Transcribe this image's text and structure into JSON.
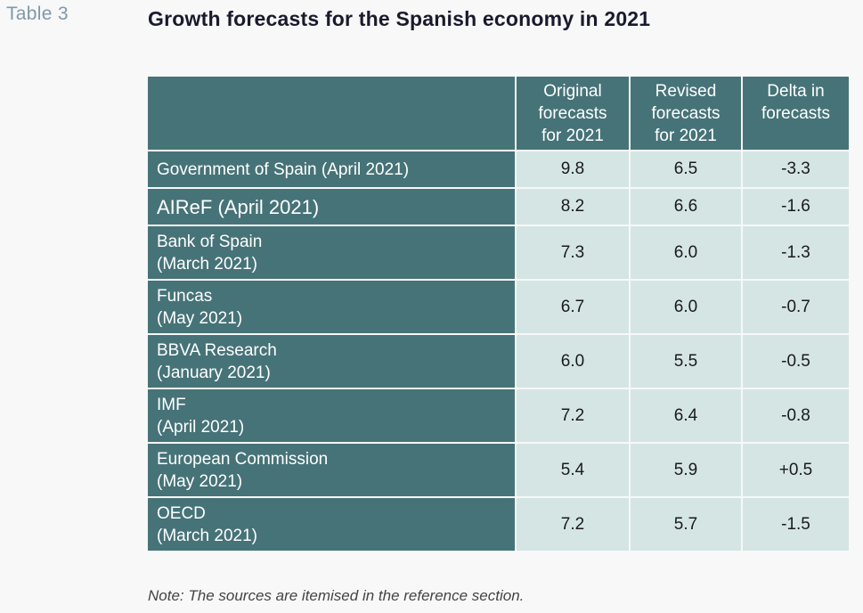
{
  "table_label": "Table 3",
  "title": "Growth forecasts for the Spanish economy in 2021",
  "headers": {
    "original": [
      "Original",
      "forecasts",
      "for 2021"
    ],
    "revised": [
      "Revised",
      "forecasts",
      "for 2021"
    ],
    "delta": [
      "Delta in",
      "forecasts"
    ]
  },
  "rows": [
    {
      "source": [
        "Government of Spain (April 2021)"
      ],
      "original": "9.8",
      "revised": "6.5",
      "delta": "-3.3"
    },
    {
      "source": [
        "AIReF (April 2021)"
      ],
      "original": "8.2",
      "revised": "6.6",
      "delta": "-1.6"
    },
    {
      "source": [
        "Bank of Spain",
        "(March 2021)"
      ],
      "original": "7.3",
      "revised": "6.0",
      "delta": "-1.3"
    },
    {
      "source": [
        "Funcas",
        "(May 2021)"
      ],
      "original": "6.7",
      "revised": "6.0",
      "delta": "-0.7"
    },
    {
      "source": [
        "BBVA Research",
        "(January 2021)"
      ],
      "original": "6.0",
      "revised": "5.5",
      "delta": "-0.5"
    },
    {
      "source": [
        "IMF",
        "(April 2021)"
      ],
      "original": "7.2",
      "revised": "6.4",
      "delta": "-0.8"
    },
    {
      "source": [
        "European Commission",
        "(May 2021)"
      ],
      "original": "5.4",
      "revised": "5.9",
      "delta": "+0.5"
    },
    {
      "source": [
        "OECD",
        "(March 2021)"
      ],
      "original": "7.2",
      "revised": "5.7",
      "delta": "-1.5"
    }
  ],
  "note": "Note: The sources are itemised in the reference section.",
  "colors": {
    "header_bg": "#467378",
    "cell_bg": "#d4e5e4",
    "label_color": "#7f99aa"
  }
}
